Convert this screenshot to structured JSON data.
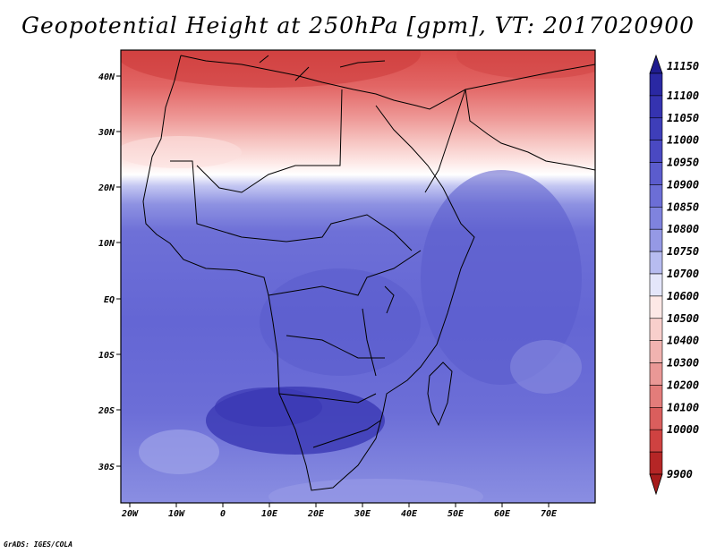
{
  "title": "Geopotential Height at 250hPa [gpm], VT: 2017020900",
  "credit": "GrADS: IGES/COLA",
  "map": {
    "lon_range": [
      -22,
      80
    ],
    "lat_range": [
      -37,
      45
    ],
    "x_ticks": [
      "20W",
      "10W",
      "0",
      "10E",
      "20E",
      "30E",
      "40E",
      "50E",
      "60E",
      "70E"
    ],
    "y_ticks": [
      "40N",
      "30N",
      "20N",
      "10N",
      "EQ",
      "10S",
      "20S",
      "30S"
    ]
  },
  "colorbar": {
    "levels": [
      "11150",
      "11100",
      "11050",
      "11000",
      "10950",
      "10900",
      "10850",
      "10800",
      "10750",
      "10700",
      "10600",
      "10500",
      "10400",
      "10300",
      "10200",
      "10100",
      "10000",
      "9900"
    ],
    "colors": [
      "#1e1b8c",
      "#2b2aa3",
      "#3a3ab4",
      "#4a49c2",
      "#5b5ccd",
      "#6c6ed6",
      "#7f83de",
      "#9599e5",
      "#b2b6ef",
      "#d8dbf7",
      "#fbe3e3",
      "#f7caca",
      "#f2b1b1",
      "#ec9797",
      "#e57c7c",
      "#de6262",
      "#d44646",
      "#c22c2c",
      "#a61c1c"
    ],
    "bands_top_to_bottom": [
      {
        "level": "11150",
        "color": "#2a28a3"
      },
      {
        "level": "11100",
        "color": "#3533b0"
      },
      {
        "level": "11050",
        "color": "#3e3eb9"
      },
      {
        "level": "11000",
        "color": "#4a49c2"
      },
      {
        "level": "10950",
        "color": "#5b5ccd"
      },
      {
        "level": "10900",
        "color": "#6c6ed6"
      },
      {
        "level": "10850",
        "color": "#7f83de"
      },
      {
        "level": "10800",
        "color": "#9599e5"
      },
      {
        "level": "10750",
        "color": "#b7bcf0"
      },
      {
        "level": "10700",
        "color": "#e4e6fa"
      },
      {
        "level": "10600",
        "color": "#fde8e6"
      },
      {
        "level": "10500",
        "color": "#f8cfcc"
      },
      {
        "level": "10400",
        "color": "#f1b3b0"
      },
      {
        "level": "10300",
        "color": "#ea9896"
      },
      {
        "level": "10200",
        "color": "#e37c7a"
      },
      {
        "level": "10100",
        "color": "#da5e5d"
      },
      {
        "level": "10000",
        "color": "#cf4241"
      },
      {
        "level": "9900",
        "color": "#b52626"
      }
    ]
  }
}
